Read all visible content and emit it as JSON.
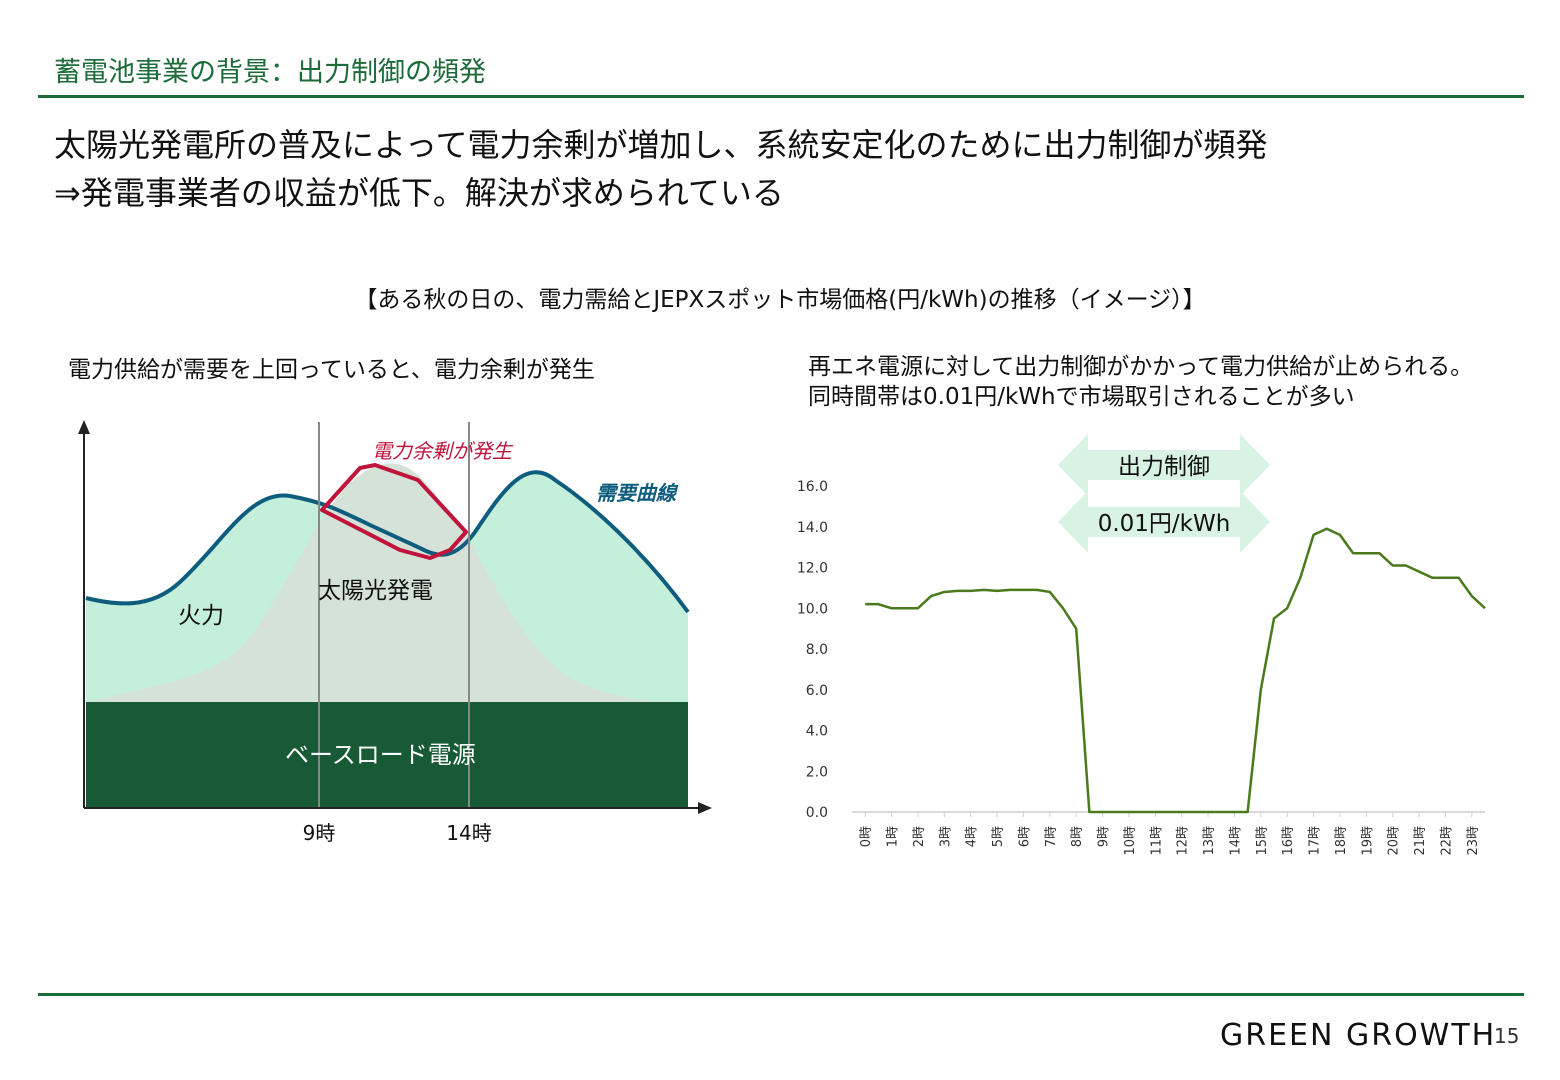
{
  "header": {
    "title": "蓄電池事業の背景：出力制御の頻発"
  },
  "lead": {
    "line1": "太陽光発電所の普及によって電力余剰が増加し、系統安定化のために出力制御が頻発",
    "line2": "⇒発電事業者の収益が低下。解決が求められている"
  },
  "figure_caption": "【ある秋の日の、電力需給とJEPXスポット市場価格(円/kWh)の推移（イメージ）】",
  "left_panel": {
    "caption": "電力供給が需要を上回っていると、電力余剰が発生",
    "labels": {
      "surplus": "電力余剰が発生",
      "demand": "需要曲線",
      "solar": "太陽光発電",
      "thermal": "火力",
      "base": "ベースロード電源",
      "t9": "9時",
      "t14": "14時"
    },
    "colors": {
      "demand_line": "#0f5d7e",
      "thermal_fill": "#c3efdb",
      "solar_fill": "#d5e2d7",
      "base_fill": "#175a35",
      "surplus_line": "#c0143c"
    }
  },
  "right_panel": {
    "caption": "再エネ電源に対して出力制御がかかって電力供給が止められる。同時間帯は0.01円/kWhで市場取引されることが多い",
    "arrow_top": "出力制御",
    "arrow_bottom": "0.01円/kWh",
    "colors": {
      "arrow": "#d8f3e4",
      "line": "#4a7a1c"
    }
  },
  "chart_data": {
    "type": "line",
    "title": "",
    "xlabel": "",
    "ylabel": "",
    "ylim": [
      0,
      16
    ],
    "yticks": [
      "0.0",
      "2.0",
      "4.0",
      "6.0",
      "8.0",
      "10.0",
      "12.0",
      "14.0",
      "16.0"
    ],
    "grid": false,
    "x_tick_labels": [
      "0時",
      "1時",
      "2時",
      "3時",
      "4時",
      "5時",
      "6時",
      "7時",
      "8時",
      "9時",
      "10時",
      "11時",
      "12時",
      "13時",
      "14時",
      "15時",
      "16時",
      "17時",
      "18時",
      "19時",
      "20時",
      "21時",
      "22時",
      "23時"
    ],
    "x": [
      0,
      0.5,
      1,
      1.5,
      2,
      2.5,
      3,
      3.5,
      4,
      4.5,
      5,
      5.5,
      6,
      6.5,
      7,
      7.5,
      8,
      8.5,
      9,
      9.5,
      10,
      10.5,
      11,
      11.5,
      12,
      12.5,
      13,
      13.5,
      14,
      14.5,
      15,
      15.5,
      16,
      16.5,
      17,
      17.5,
      18,
      18.5,
      19,
      19.5,
      20,
      20.5,
      21,
      21.5,
      22,
      22.5,
      23,
      23.5
    ],
    "series": [
      {
        "values": [
          10.2,
          10.2,
          10.0,
          10.0,
          10.0,
          10.6,
          10.8,
          10.85,
          10.85,
          10.9,
          10.85,
          10.9,
          10.9,
          10.9,
          10.8,
          10.0,
          9.0,
          0.0,
          0.0,
          0.0,
          0.0,
          0.0,
          0.0,
          0.0,
          0.0,
          0.0,
          0.0,
          0.0,
          0.0,
          0.0,
          6.0,
          9.5,
          10.0,
          11.5,
          13.6,
          13.9,
          13.6,
          12.7,
          12.7,
          12.7,
          12.1,
          12.1,
          11.8,
          11.5,
          11.5,
          11.5,
          10.6,
          10.0
        ]
      }
    ]
  },
  "footer": {
    "logo": "GREEN GROWTH",
    "page_number": "15"
  }
}
